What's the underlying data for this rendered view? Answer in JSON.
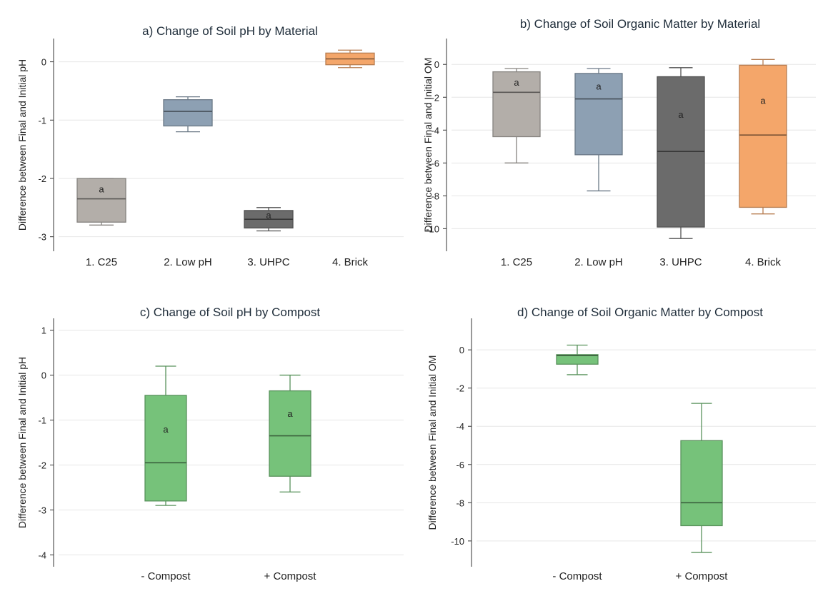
{
  "chart_data": [
    {
      "type": "box",
      "title": "a) Change of Soil pH by Material",
      "ylabel": "Difference between Final and Initial pH",
      "xlabel": "",
      "ylim": [
        -3.2,
        0.35
      ],
      "yticks": [
        0,
        -1,
        -2,
        -3
      ],
      "ytick_labels": [
        "0",
        "-1",
        "-2",
        "-3"
      ],
      "grid": true,
      "categories": [
        "1. C25",
        "2. Low pH",
        "3. UHPC",
        "4. Brick"
      ],
      "boxes": [
        {
          "whisker_low": -2.8,
          "q1": -2.75,
          "median": -2.35,
          "q3": -2.0,
          "whisker_high": -2.0,
          "color": "#b3aea9",
          "letter": "a"
        },
        {
          "whisker_low": -1.2,
          "q1": -1.1,
          "median": -0.85,
          "q3": -0.65,
          "whisker_high": -0.6,
          "color": "#8da0b3",
          "letter": ""
        },
        {
          "whisker_low": -2.9,
          "q1": -2.85,
          "median": -2.7,
          "q3": -2.55,
          "whisker_high": -2.5,
          "color": "#6b6b6b",
          "letter": "a"
        },
        {
          "whisker_low": -0.1,
          "q1": -0.05,
          "median": 0.05,
          "q3": 0.15,
          "whisker_high": 0.2,
          "color": "#f4a66a",
          "letter": ""
        }
      ]
    },
    {
      "type": "box",
      "title": "b) Change of Soil Organic Matter by Material",
      "ylabel": "Difference between Final and Initial OM",
      "xlabel": "",
      "ylim": [
        -11.2,
        1.4
      ],
      "yticks": [
        0,
        -2,
        -4,
        -6,
        -8,
        -10
      ],
      "ytick_labels": [
        "0",
        "-2",
        "-4",
        "-6",
        "-8",
        "-10"
      ],
      "grid": true,
      "categories": [
        "1. C25",
        "2. Low pH",
        "3. UHPC",
        "4. Brick"
      ],
      "boxes": [
        {
          "whisker_low": -6.0,
          "q1": -4.4,
          "median": -1.7,
          "q3": -0.45,
          "whisker_high": -0.25,
          "color": "#b3aea9",
          "letter": "a"
        },
        {
          "whisker_low": -7.7,
          "q1": -5.5,
          "median": -2.1,
          "q3": -0.55,
          "whisker_high": -0.25,
          "color": "#8da0b3",
          "letter": "a"
        },
        {
          "whisker_low": -10.6,
          "q1": -9.9,
          "median": -5.3,
          "q3": -0.75,
          "whisker_high": -0.2,
          "color": "#6b6b6b",
          "letter": "a"
        },
        {
          "whisker_low": -9.1,
          "q1": -8.7,
          "median": -4.3,
          "q3": -0.05,
          "whisker_high": 0.3,
          "color": "#f4a66a",
          "letter": "a"
        }
      ]
    },
    {
      "type": "box",
      "title": "c) Change of Soil pH by Compost",
      "ylabel": "Difference between Final and Initial pH",
      "xlabel": "",
      "ylim": [
        -4.2,
        1.2
      ],
      "yticks": [
        1,
        0,
        -1,
        -2,
        -3,
        -4
      ],
      "ytick_labels": [
        "1",
        "0",
        "-1",
        "-2",
        "-3",
        "-4"
      ],
      "grid": true,
      "categories": [
        "- Compost",
        "+ Compost"
      ],
      "boxes": [
        {
          "whisker_low": -2.9,
          "q1": -2.8,
          "median": -1.95,
          "q3": -0.45,
          "whisker_high": 0.2,
          "color": "#76c27a",
          "letter": "a"
        },
        {
          "whisker_low": -2.6,
          "q1": -2.25,
          "median": -1.35,
          "q3": -0.35,
          "whisker_high": 0.0,
          "color": "#76c27a",
          "letter": "a"
        }
      ]
    },
    {
      "type": "box",
      "title": "d) Change of Soil Organic Matter by Compost",
      "ylabel": "Difference between Final and Initial OM",
      "xlabel": "",
      "ylim": [
        -11.2,
        1.5
      ],
      "yticks": [
        0,
        -2,
        -4,
        -6,
        -8,
        -10
      ],
      "ytick_labels": [
        "0",
        "-2",
        "-4",
        "-6",
        "-8",
        "-10"
      ],
      "grid": true,
      "categories": [
        "- Compost",
        "+ Compost"
      ],
      "boxes": [
        {
          "whisker_low": -1.3,
          "q1": -0.75,
          "median": -0.3,
          "q3": -0.25,
          "whisker_high": 0.25,
          "color": "#76c27a",
          "letter": ""
        },
        {
          "whisker_low": -10.6,
          "q1": -9.2,
          "median": -8.0,
          "q3": -4.75,
          "whisker_high": -2.8,
          "color": "#76c27a",
          "letter": ""
        }
      ]
    }
  ]
}
